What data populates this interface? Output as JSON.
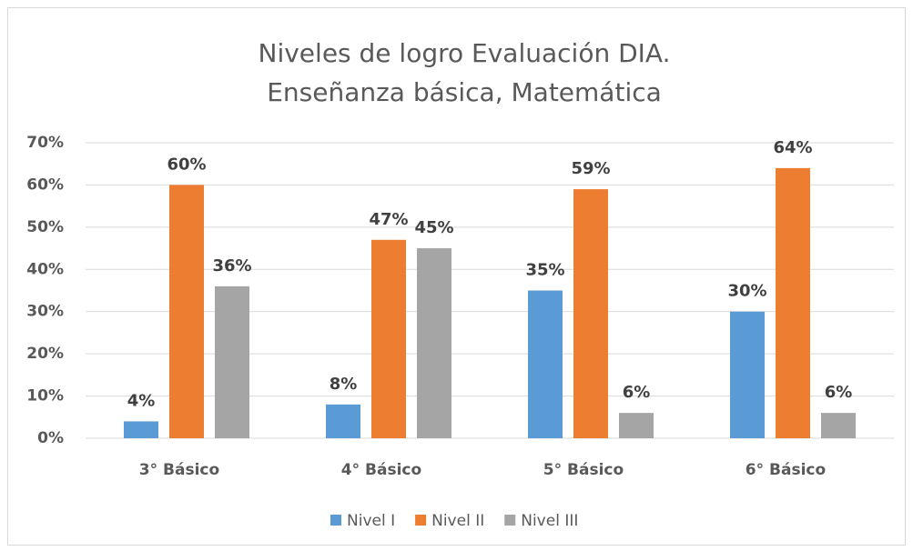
{
  "chart_data": {
    "type": "bar",
    "title": [
      "Niveles de logro Evaluación DIA.",
      "Enseñanza básica, Matemática"
    ],
    "categories": [
      "3° Básico",
      "4° Básico",
      "5° Básico",
      "6° Básico"
    ],
    "series": [
      {
        "name": "Nivel I",
        "color": "#5b9bd5",
        "values": [
          4,
          8,
          35,
          30
        ],
        "value_labels": [
          "4%",
          "8%",
          "35%",
          "30%"
        ]
      },
      {
        "name": "Nivel II",
        "color": "#ed7d31",
        "values": [
          60,
          47,
          59,
          64
        ],
        "value_labels": [
          "60%",
          "47%",
          "59%",
          "64%"
        ]
      },
      {
        "name": "Nivel III",
        "color": "#a5a5a5",
        "values": [
          36,
          45,
          6,
          6
        ],
        "value_labels": [
          "36%",
          "45%",
          "6%",
          "6%"
        ]
      }
    ],
    "ylim": [
      0,
      70
    ],
    "yticks": [
      {
        "value": 0,
        "label": "0%"
      },
      {
        "value": 10,
        "label": "10%"
      },
      {
        "value": 20,
        "label": "20%"
      },
      {
        "value": 30,
        "label": "30%"
      },
      {
        "value": 40,
        "label": "40%"
      },
      {
        "value": 50,
        "label": "50%"
      },
      {
        "value": 60,
        "label": "60%"
      },
      {
        "value": 70,
        "label": "70%"
      }
    ],
    "grid": true,
    "legend": "bottom"
  }
}
